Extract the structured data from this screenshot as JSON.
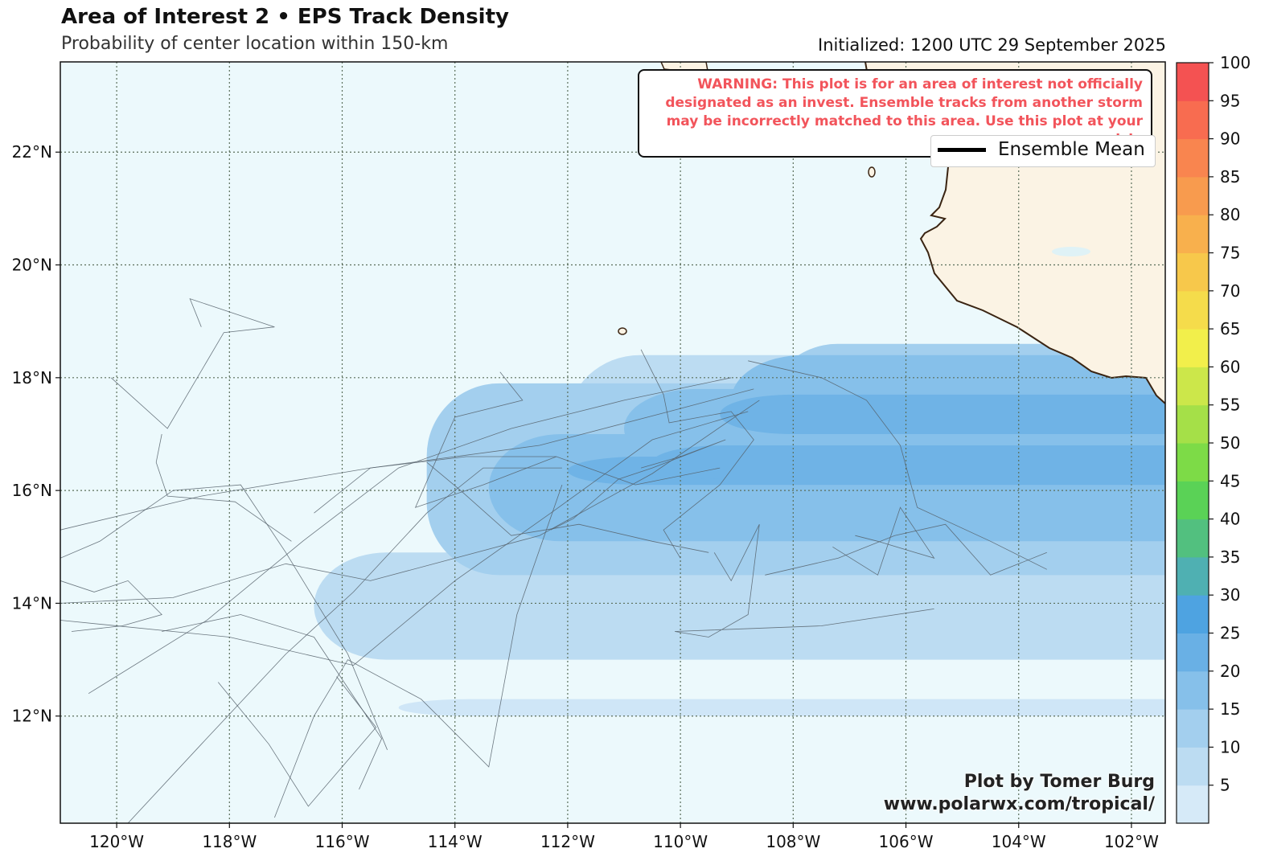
{
  "header": {
    "title": "Area of Interest 2 • EPS Track Density",
    "subtitle": "Probability of center location within 150-km",
    "initialized": "Initialized: 1200 UTC 29 September 2025"
  },
  "warning": "WARNING: This plot is for an area of interest not officially designated as an invest. Ensemble tracks from another storm may be incorrectly matched to this area. Use this plot at your own risk.",
  "legend": {
    "label": "Ensemble Mean"
  },
  "credit": {
    "line1": "Plot by Tomer Burg",
    "line2": "www.polarwx.com/tropical/"
  },
  "map": {
    "lon_range": [
      -121,
      -101.4
    ],
    "lat_range": [
      10.1,
      23.6
    ],
    "lon_ticks": [
      "120°W",
      "118°W",
      "116°W",
      "114°W",
      "112°W",
      "110°W",
      "108°W",
      "106°W",
      "104°W",
      "102°W"
    ],
    "lat_ticks": [
      "12°N",
      "14°N",
      "16°N",
      "18°N",
      "20°N",
      "22°N"
    ],
    "colors": {
      "ocean": "#ecf9fc",
      "land": "#fbf3e4",
      "coast": "#3a2412",
      "grid": "#5a6e5a"
    }
  },
  "colorbar": {
    "labels": [
      "5",
      "10",
      "15",
      "20",
      "25",
      "30",
      "35",
      "40",
      "45",
      "50",
      "55",
      "60",
      "65",
      "70",
      "75",
      "80",
      "85",
      "90",
      "95",
      "100"
    ],
    "colors": [
      "#d6eaf8",
      "#bcdcf2",
      "#a3cfee",
      "#86c0ea",
      "#69b0e5",
      "#4ea3e1",
      "#4fb0b2",
      "#52c07f",
      "#5ad256",
      "#7ddb47",
      "#a5e048",
      "#cce74a",
      "#f2ef4b",
      "#f5dc4b",
      "#f7c84b",
      "#f8b04d",
      "#f89b4e",
      "#f9854f",
      "#f86c50",
      "#f45252"
    ]
  },
  "density": {
    "levels": [
      {
        "value": 5,
        "color": "#cfe6f7",
        "blobs": [
          [
            -121.5,
            17,
            12.2,
            3.7
          ],
          [
            -115,
            12,
            10.7,
            12.3
          ],
          [
            -117.5,
            16,
            11.2,
            14.1
          ],
          [
            -108.3,
            16.8,
            11.7,
            14.3
          ],
          [
            -110.5,
            13.5,
            9.7,
            12.3
          ],
          [
            -112,
            17,
            11.4,
            14.3
          ]
        ]
      },
      {
        "value": 10,
        "color": "#bcdcf2",
        "blobs": [
          [
            -121.5,
            17,
            13.5,
            15.4
          ],
          [
            -116.5,
            13,
            11.2,
            14.9
          ],
          [
            -112,
            16,
            13.2,
            18.4
          ],
          [
            -108.5,
            15.7,
            13,
            17.1
          ],
          [
            -106.8,
            14.5,
            13.3,
            16
          ],
          [
            -109,
            15,
            13.5,
            16.5
          ]
        ]
      },
      {
        "value": 15,
        "color": "#a3cfee",
        "blobs": [
          [
            -114.5,
            14.5,
            15.5,
            17.9
          ],
          [
            -111,
            16,
            14.8,
            17.6
          ],
          [
            -108.5,
            16,
            15.4,
            18.6
          ]
        ]
      },
      {
        "value": 20,
        "color": "#86c0ea",
        "blobs": [
          [
            -113.4,
            15.1,
            15.7,
            17
          ],
          [
            -111,
            16.4,
            15.6,
            17.8
          ],
          [
            -109.1,
            16.8,
            16.3,
            18.4
          ]
        ]
      },
      {
        "value": 25,
        "color": "#6fb3e6",
        "blobs": [
          [
            -112,
            16.1,
            15.9,
            16.6
          ],
          [
            -110.5,
            16.2,
            16,
            16.8
          ],
          [
            -109.3,
            17,
            16.7,
            17.7
          ]
        ]
      }
    ]
  },
  "tracks": [
    [
      [
        -121,
        14
      ],
      [
        -119,
        14.1
      ],
      [
        -117,
        14.7
      ],
      [
        -115.5,
        14.4
      ],
      [
        -112.5,
        15.2
      ],
      [
        -110.5,
        16.3
      ],
      [
        -108.6,
        17.6
      ]
    ],
    [
      [
        -121,
        15.3
      ],
      [
        -118.5,
        15.9
      ],
      [
        -115.5,
        16.4
      ],
      [
        -112.5,
        16.8
      ],
      [
        -110.2,
        17.4
      ],
      [
        -108.7,
        17.8
      ]
    ],
    [
      [
        -121,
        13.7
      ],
      [
        -118,
        13.4
      ],
      [
        -115.8,
        12.9
      ],
      [
        -114,
        14.4
      ],
      [
        -112.3,
        15.6
      ],
      [
        -110.5,
        16.9
      ],
      [
        -108.8,
        17.4
      ]
    ],
    [
      [
        -120.5,
        12.4
      ],
      [
        -118.4,
        13.7
      ],
      [
        -116.7,
        15.1
      ],
      [
        -115,
        16.4
      ],
      [
        -113,
        17.1
      ],
      [
        -111,
        17.6
      ],
      [
        -109.1,
        18
      ]
    ],
    [
      [
        -119.8,
        10.1
      ],
      [
        -118.5,
        11.5
      ],
      [
        -117,
        13.1
      ],
      [
        -115.8,
        14.2
      ],
      [
        -114.5,
        15.6
      ],
      [
        -113.5,
        16.4
      ],
      [
        -112.1,
        16.4
      ]
    ],
    [
      [
        -121,
        14.8
      ],
      [
        -120.3,
        15.1
      ],
      [
        -119,
        16
      ],
      [
        -117.8,
        16.1
      ],
      [
        -117,
        14.9
      ],
      [
        -115.9,
        13.1
      ],
      [
        -115.2,
        11.4
      ]
    ],
    [
      [
        -117.2,
        10.2
      ],
      [
        -116.5,
        12
      ],
      [
        -115.9,
        13
      ],
      [
        -114.6,
        12.3
      ],
      [
        -113.4,
        11.1
      ],
      [
        -112.9,
        13.8
      ],
      [
        -112.1,
        16.1
      ]
    ],
    [
      [
        -116.5,
        15.6
      ],
      [
        -115.5,
        16.4
      ],
      [
        -113.8,
        16.6
      ],
      [
        -112.2,
        16.6
      ],
      [
        -110.8,
        16.1
      ],
      [
        -109.3,
        16.4
      ]
    ],
    [
      [
        -114.5,
        16.5
      ],
      [
        -113.9,
        16
      ],
      [
        -113,
        15.2
      ],
      [
        -111.8,
        15.4
      ],
      [
        -110.5,
        15.1
      ],
      [
        -109.5,
        14.9
      ]
    ],
    [
      [
        -113.2,
        18.1
      ],
      [
        -112.8,
        17.6
      ],
      [
        -114,
        17.3
      ],
      [
        -114.7,
        15.7
      ],
      [
        -113.5,
        16.1
      ],
      [
        -112.2,
        16.6
      ]
    ],
    [
      [
        -120.1,
        18
      ],
      [
        -119.1,
        17.1
      ],
      [
        -118.1,
        18.8
      ],
      [
        -117.2,
        18.9
      ],
      [
        -118.7,
        19.4
      ],
      [
        -118.5,
        18.9
      ]
    ],
    [
      [
        -119.2,
        17
      ],
      [
        -119.3,
        16.5
      ],
      [
        -119.1,
        15.9
      ],
      [
        -117.9,
        15.8
      ],
      [
        -116.9,
        15.1
      ]
    ],
    [
      [
        -110.7,
        18.5
      ],
      [
        -110.3,
        17.7
      ],
      [
        -110.2,
        17.2
      ],
      [
        -109.1,
        17.4
      ],
      [
        -108.7,
        16.9
      ],
      [
        -109.3,
        16.1
      ],
      [
        -110.3,
        15.3
      ],
      [
        -110,
        14.8
      ]
    ],
    [
      [
        -109.4,
        14.9
      ],
      [
        -109.1,
        14.4
      ],
      [
        -108.6,
        15.4
      ],
      [
        -108.7,
        14.6
      ],
      [
        -108.8,
        13.8
      ],
      [
        -109.5,
        13.4
      ],
      [
        -110.1,
        13.5
      ],
      [
        -107.5,
        13.6
      ],
      [
        -105.5,
        13.9
      ]
    ],
    [
      [
        -108.8,
        18.3
      ],
      [
        -107.5,
        18
      ],
      [
        -106.7,
        17.6
      ],
      [
        -106.1,
        16.8
      ],
      [
        -105.8,
        15.7
      ],
      [
        -104.5,
        15.1
      ],
      [
        -103.5,
        14.6
      ]
    ],
    [
      [
        -108.5,
        14.5
      ],
      [
        -107.2,
        14.8
      ],
      [
        -106.2,
        15.2
      ],
      [
        -105.3,
        15.4
      ],
      [
        -104.5,
        14.5
      ],
      [
        -103.5,
        14.9
      ]
    ],
    [
      [
        -107.3,
        15
      ],
      [
        -106.5,
        14.5
      ],
      [
        -106.1,
        15.7
      ],
      [
        -105.5,
        14.8
      ],
      [
        -106.5,
        15.1
      ],
      [
        -106.9,
        15.2
      ]
    ],
    [
      [
        -110.7,
        16.4
      ],
      [
        -110,
        16.6
      ],
      [
        -109.2,
        16.9
      ],
      [
        -110.5,
        16.4
      ],
      [
        -111.1,
        16.2
      ],
      [
        -111.9,
        15.5
      ],
      [
        -112.3,
        15.3
      ]
    ],
    [
      [
        -119.2,
        13.5
      ],
      [
        -117.8,
        13.8
      ],
      [
        -116.5,
        13.4
      ],
      [
        -115.3,
        11.6
      ],
      [
        -115.7,
        10.7
      ]
    ],
    [
      [
        -116.1,
        12.7
      ],
      [
        -115.4,
        11.8
      ],
      [
        -116,
        11.1
      ],
      [
        -116.6,
        10.4
      ],
      [
        -117.3,
        11.5
      ],
      [
        -118.2,
        12.6
      ]
    ],
    [
      [
        -121,
        14.4
      ],
      [
        -120.4,
        14.2
      ],
      [
        -119.8,
        14.4
      ],
      [
        -119.2,
        13.8
      ],
      [
        -119.9,
        13.6
      ],
      [
        -120.8,
        13.5
      ]
    ]
  ]
}
